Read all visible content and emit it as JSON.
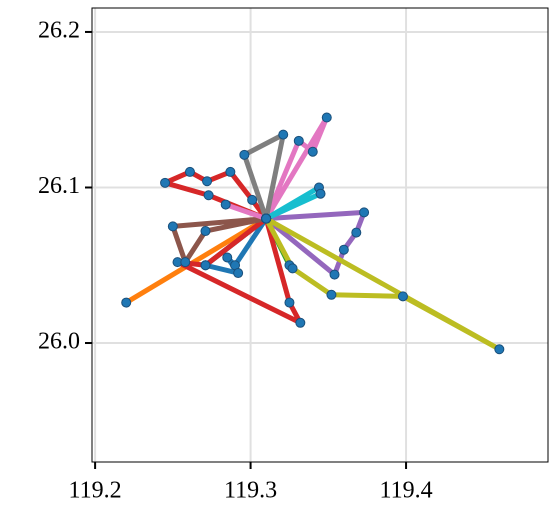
{
  "chart_data": {
    "type": "line",
    "xlim": [
      119.198,
      119.4913
    ],
    "ylim": [
      25.9235,
      26.2154
    ],
    "xticks": [
      119.2,
      119.3,
      119.4
    ],
    "yticks": [
      {
        "value": 26.0,
        "label": "26.0"
      },
      26.1,
      26.2
    ],
    "grid": true,
    "marker_color": "#1f77b4",
    "series": [
      {
        "color": "#1f77b4",
        "x": [
          119.31,
          119.29,
          119.285,
          119.292,
          119.271,
          119.31
        ],
        "values": [
          26.08,
          26.05,
          26.055,
          26.045,
          26.05,
          26.08
        ]
      },
      {
        "color": "#ff7f0e",
        "x": [
          119.31,
          119.22,
          119.31
        ],
        "values": [
          26.08,
          26.026,
          26.08
        ]
      },
      {
        "color": "#2ca02c",
        "x": [
          119.31,
          119.325,
          119.31
        ],
        "values": [
          26.08,
          26.05,
          26.08
        ]
      },
      {
        "color": "#d62728",
        "x": [
          119.31,
          119.301,
          119.287,
          119.272,
          119.261,
          119.245,
          119.273,
          119.31
        ],
        "values": [
          26.08,
          26.092,
          26.11,
          26.104,
          26.11,
          26.103,
          26.095,
          26.08
        ]
      },
      {
        "color": "#d62728",
        "x": [
          119.31,
          119.325,
          119.332,
          119.253,
          119.271,
          119.31
        ],
        "values": [
          26.08,
          26.026,
          26.013,
          26.052,
          26.05,
          26.08
        ]
      },
      {
        "color": "#9467bd",
        "x": [
          119.31,
          119.373,
          119.368,
          119.36,
          119.354,
          119.31
        ],
        "values": [
          26.08,
          26.084,
          26.071,
          26.06,
          26.044,
          26.08
        ]
      },
      {
        "color": "#8c564b",
        "x": [
          119.31,
          119.25,
          119.258,
          119.271,
          119.31
        ],
        "values": [
          26.08,
          26.075,
          26.052,
          26.072,
          26.08
        ]
      },
      {
        "color": "#e377c2",
        "x": [
          119.31,
          119.349,
          119.34,
          119.331,
          119.31
        ],
        "values": [
          26.08,
          26.145,
          26.123,
          26.13,
          26.08
        ]
      },
      {
        "color": "#e377c2",
        "x": [
          119.31,
          119.284,
          119.31
        ],
        "values": [
          26.08,
          26.089,
          26.08
        ]
      },
      {
        "color": "#7f7f7f",
        "x": [
          119.31,
          119.296,
          119.321,
          119.31
        ],
        "values": [
          26.08,
          26.121,
          26.134,
          26.08
        ]
      },
      {
        "color": "#bcbd22",
        "x": [
          119.31,
          119.46,
          119.398,
          119.352,
          119.327,
          119.31
        ],
        "values": [
          26.08,
          25.996,
          26.03,
          26.031,
          26.048,
          26.08
        ]
      },
      {
        "color": "#17becf",
        "x": [
          119.31,
          119.344,
          119.345,
          119.31
        ],
        "values": [
          26.08,
          26.1,
          26.096,
          26.08
        ]
      }
    ]
  }
}
